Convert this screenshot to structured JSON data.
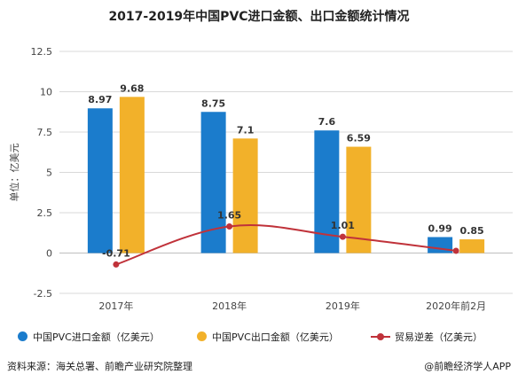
{
  "chart_data": {
    "type": "bar",
    "title": "2017-2019年中国PVC进口金额、出口金额统计情况",
    "ylabel": "单位：亿美元",
    "xlabel": "",
    "ylim": [
      -2.5,
      12.5
    ],
    "yticks": [
      "12.5",
      "10",
      "7.5",
      "5",
      "2.5",
      "0",
      "-2.5"
    ],
    "categories": [
      "2017年",
      "2018年",
      "2019年",
      "2020年前2月"
    ],
    "grid": true,
    "legend_position": "bottom",
    "series": [
      {
        "name": "中国PVC进口金额（亿美元）",
        "kind": "bar",
        "color": "#1b7ccc",
        "values": [
          8.97,
          8.75,
          7.6,
          0.99
        ],
        "labels": [
          "8.97",
          "8.75",
          "7.6",
          "0.99"
        ]
      },
      {
        "name": "中国PVC出口金额（亿美元）",
        "kind": "bar",
        "color": "#f2b12a",
        "values": [
          9.68,
          7.1,
          6.59,
          0.85
        ],
        "labels": [
          "9.68",
          "7.1",
          "6.59",
          "0.85"
        ]
      },
      {
        "name": "贸易逆差（亿美元）",
        "kind": "line",
        "color": "#c0323a",
        "values": [
          -0.71,
          1.65,
          1.01,
          0.14
        ],
        "labels": [
          "-0.71",
          "1.65",
          "1.01",
          ""
        ]
      }
    ]
  },
  "source_text": "资料来源：海关总署、前瞻产业研究院整理",
  "brand_text": "@前瞻经济学人APP"
}
